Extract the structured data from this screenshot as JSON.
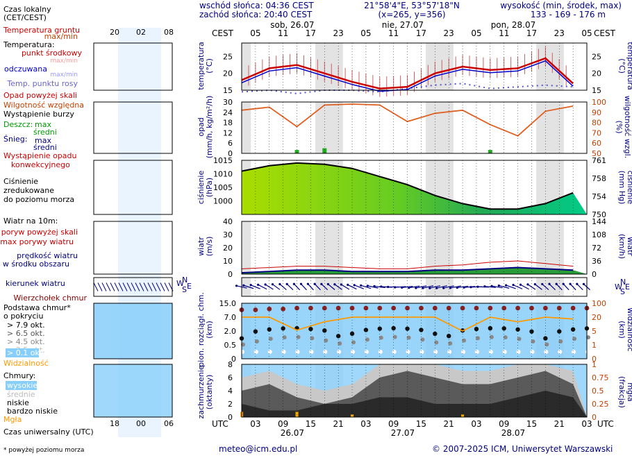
{
  "header": {
    "sunrise": "wschód słońca: 04:36 CEST",
    "sunset": "zachód słońca: 20:40 CEST",
    "coords": "21°58'4\"E, 53°57'18\"N",
    "grid": "(x=265, y=356)",
    "altitude_title": "wysokość (min, środek, max)",
    "altitude_values": "133 - 169 - 176 m"
  },
  "timebar": {
    "top_zone": "CEST",
    "bottom_zone": "UTC",
    "top_hours": [
      "05",
      "11",
      "17",
      "23",
      "05",
      "11",
      "17",
      "23",
      "05",
      "11",
      "17",
      "23",
      "05"
    ],
    "top_days": [
      "sob, 26.07",
      "nie, 27.07",
      "pon, 28.07"
    ],
    "bottom_hours": [
      "03",
      "09",
      "15",
      "21",
      "03",
      "09",
      "15",
      "21",
      "03",
      "09",
      "15",
      "21",
      "03"
    ],
    "bottom_days": [
      "26.07",
      "27.07",
      "28.07"
    ]
  },
  "legend": {
    "local_time": "Czas lokalny",
    "local_time_zone": "(CET/CEST)",
    "small_top_hours": [
      "20",
      "02",
      "08"
    ],
    "small_bottom_hours": [
      "18",
      "00",
      "06"
    ],
    "utc_label": "Czas uniwersalny (UTC)",
    "ground_temp": "Temperatura gruntu",
    "ground_temp_sub": "max/min",
    "temperature": "Temperatura:",
    "temp_mid": "punkt środkowy",
    "temp_maxmin": "max/min",
    "temp_felt": "odczuwana",
    "temp_felt_sub": "max/min",
    "dew_point": "Temp. punktu rosy",
    "precip_above": "Opad powyżej skali",
    "rel_humidity": "Wilgotność względna",
    "storm": "Wystąpienie burzy",
    "rain": "Deszcz:",
    "rain_max": "max",
    "rain_mean": "średni",
    "snow": "Śnieg:",
    "snow_max": "max",
    "snow_mean": "średni",
    "conv_precip_1": "Wystąpienie opadu",
    "conv_precip_2": "konwekcyjnego",
    "pressure_1": "Ciśnienie",
    "pressure_2": "zredukowane",
    "pressure_3": "do poziomu morza",
    "wind_at": "Wiatr na 10m:",
    "gust_above": "poryw powyżej skali",
    "gust_max": "max porywy wiatru",
    "wind_speed": "prędkość wiatru",
    "wind_area": "w środku obszaru",
    "wind_dir": "kierunek wiatru",
    "cloud_tip": "Wierzchołek chmur",
    "cloud_base_1": "Podstawa chmur*",
    "cloud_base_2": "o pokryciu",
    "okt": [
      "> 7.9 okt.",
      "> 6.5 okt.",
      "> 4.5 okt.",
      "> 2.5 okt.",
      "> 0.1 okt."
    ],
    "visibility": "Widzialność",
    "clouds": "Chmury:",
    "cl_high": "wysokie",
    "cl_mid": "średnie",
    "cl_low": "niskie",
    "cl_vlow": "bardzo niskie",
    "fog": "Mgła",
    "footnote": "* powyżej poziomu morza"
  },
  "axis_labels": {
    "temp_left": "temperatura",
    "temp_left_unit": "(°C)",
    "temp_right": "temperatura",
    "temp_right_unit": "(°C)",
    "precip_left": "opad",
    "precip_left_unit": "(mm/h, kg/m²/h)",
    "precip_right_unit": "(%)",
    "precip_right": "wilgotność wzgl.",
    "press_left": "ciśnienie",
    "press_left_unit": "(hPa)",
    "press_right_unit": "(mm Hg)",
    "press_right": "ciśnienie",
    "wind_left": "wiatr",
    "wind_left_unit": "(m/s)",
    "wind_right_unit": "(km/h)",
    "wind_right": "wiatr",
    "cloud_left_1": "pion. rozciągł. chm.",
    "cloud_left_2": "(km)",
    "cloud_right_unit": "(km)",
    "cloud_right": "widzialność",
    "cc_left_1": "zachmurzenie",
    "cc_left_2": "(oktanty)",
    "cc_right_unit": "(frakcja)",
    "cc_right": "mgła"
  },
  "compass": {
    "n": "N",
    "w": "W",
    "e": "E",
    "s": "S"
  },
  "footer": {
    "email": "meteo@icm.edu.pl",
    "copyright": "© 2007-2025 ICM, Uniwersytet Warszawski"
  },
  "colors": {
    "navy": "#000080",
    "red": "#cc0000",
    "orange": "#c04000",
    "night": "#e3e3e3",
    "sky": "#87cefa",
    "pressure_high": "#aadd00",
    "pressure_low": "#00cc88"
  },
  "chart_data": [
    {
      "id": "temperature",
      "type": "line",
      "ylim": [
        15,
        29
      ],
      "y_ticks": [
        15,
        20,
        25
      ],
      "ylabel": "temperatura (°C)",
      "hours_from_start": [
        0,
        6,
        12,
        18,
        24,
        30,
        36,
        42,
        48,
        54,
        60,
        66,
        72
      ],
      "series": [
        {
          "name": "punkt środkowy",
          "values": [
            18,
            21.5,
            22.5,
            20,
            17.5,
            15.5,
            16,
            20,
            22,
            21,
            21.5,
            24.5,
            17
          ]
        },
        {
          "name": "Temp. punktu rosy",
          "values": [
            14.5,
            15,
            14,
            15,
            15,
            14.5,
            15.5,
            16.5,
            17,
            15.5,
            16,
            16.5,
            16
          ]
        }
      ]
    },
    {
      "id": "precipitation_humidity",
      "type": "bar",
      "ylim": [
        0,
        30
      ],
      "y_ticks": [
        0,
        6,
        12,
        18,
        24,
        30
      ],
      "ylabel": "opad (mm/h, kg/m²/h)",
      "y2lim": [
        50,
        100
      ],
      "y2_ticks": [
        50,
        60,
        70,
        80,
        90,
        100
      ],
      "y2label": "wilgotność wzgl. (%)",
      "hours_from_start": [
        0,
        6,
        12,
        18,
        24,
        30,
        36,
        42,
        48,
        54,
        60,
        66,
        72
      ],
      "series": [
        {
          "name": "Wilgotność względna",
          "values": [
            92,
            95,
            76,
            97,
            98,
            97,
            81,
            89,
            92,
            78,
            67,
            91,
            96
          ]
        },
        {
          "name": "Deszcz średni",
          "values": [
            0,
            0,
            2,
            3,
            0,
            0,
            0,
            0,
            0,
            2,
            0,
            0,
            0
          ]
        }
      ]
    },
    {
      "id": "pressure",
      "type": "area",
      "ylim": [
        995,
        1015
      ],
      "y_ticks": [
        1000,
        1005,
        1010,
        1015
      ],
      "ylabel": "ciśnienie (hPa)",
      "y2_ticks": [
        750,
        754,
        758,
        761
      ],
      "y2label": "ciśnienie (mm Hg)",
      "hours_from_start": [
        0,
        6,
        12,
        18,
        24,
        30,
        36,
        42,
        48,
        54,
        60,
        66,
        72
      ],
      "series": [
        {
          "name": "Ciśnienie",
          "values": [
            1011,
            1013,
            1014,
            1013.5,
            1012,
            1009,
            1006,
            1002,
            999,
            997,
            997,
            999,
            1003
          ]
        }
      ]
    },
    {
      "id": "wind",
      "type": "area",
      "ylim": [
        0,
        40
      ],
      "y_ticks": [
        0,
        10,
        20,
        30,
        40
      ],
      "ylabel": "wiatr (m/s)",
      "y2_ticks": [
        0,
        36,
        72,
        108,
        144
      ],
      "y2label": "wiatr (km/h)",
      "hours_from_start": [
        0,
        6,
        12,
        18,
        24,
        30,
        36,
        42,
        48,
        54,
        60,
        66,
        72
      ],
      "series": [
        {
          "name": "prędkość wiatru",
          "values": [
            1,
            2,
            3,
            3,
            2,
            2,
            2,
            3,
            3,
            4,
            5,
            4,
            3
          ]
        },
        {
          "name": "max porywy wiatru",
          "values": [
            4,
            5,
            6,
            6,
            5,
            4,
            4,
            6,
            7,
            9,
            10,
            8,
            6
          ]
        }
      ]
    },
    {
      "id": "cloud_visibility",
      "type": "scatter",
      "ylim": [
        0,
        15
      ],
      "y_ticks": [
        0,
        0.5,
        2.0,
        7.0,
        15.0
      ],
      "ylabel": "pion. rozciągł. chm. (km)",
      "y2_ticks": [
        0,
        1,
        5,
        20,
        100
      ],
      "y2label": "widzialność (km)",
      "hours_from_start": [
        0,
        6,
        12,
        18,
        24,
        30,
        36,
        42,
        48,
        54,
        60,
        66,
        72
      ],
      "series": [
        {
          "name": "Wierzchołek chmur",
          "values": [
            12,
            12.5,
            13,
            13,
            13,
            13,
            13,
            13,
            13,
            13,
            13,
            13,
            13
          ]
        },
        {
          "name": "Widzialność",
          "values": [
            20,
            20,
            6,
            15,
            20,
            20,
            20,
            20,
            5,
            20,
            15,
            20,
            18
          ]
        }
      ]
    },
    {
      "id": "cloud_cover",
      "type": "area",
      "ylim": [
        0,
        8
      ],
      "y_ticks": [
        0,
        2,
        4,
        6,
        8
      ],
      "ylabel": "zachmurzenie (oktanty)",
      "y2_ticks": [
        0,
        0.25,
        0.5,
        0.75,
        1
      ],
      "y2label": "mgła (frakcja)",
      "hours_from_start": [
        0,
        6,
        12,
        18,
        24,
        30,
        36,
        42,
        48,
        54,
        60,
        66,
        72
      ],
      "series": [
        {
          "name": "niskie",
          "values": [
            4,
            5,
            3,
            2,
            3,
            6,
            7,
            6,
            5,
            5,
            6,
            7,
            5
          ]
        },
        {
          "name": "bardzo niskie",
          "values": [
            2,
            1,
            1,
            2,
            2,
            3,
            3,
            2,
            2,
            2,
            3,
            4,
            3
          ]
        },
        {
          "name": "Mgła",
          "values": [
            0.1,
            0,
            0.1,
            0,
            0.05,
            0,
            0,
            0,
            0.05,
            0,
            0,
            0,
            0
          ]
        }
      ]
    }
  ]
}
